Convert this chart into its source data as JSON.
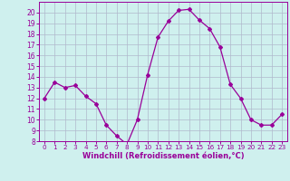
{
  "x": [
    0,
    1,
    2,
    3,
    4,
    5,
    6,
    7,
    8,
    9,
    10,
    11,
    12,
    13,
    14,
    15,
    16,
    17,
    18,
    19,
    20,
    21,
    22,
    23
  ],
  "y": [
    12,
    13.5,
    13,
    13.2,
    12.2,
    11.5,
    9.5,
    8.5,
    7.7,
    10,
    14.2,
    17.7,
    19.2,
    20.2,
    20.3,
    19.3,
    18.5,
    16.8,
    13.3,
    12,
    10,
    9.5,
    9.5,
    10.5
  ],
  "line_color": "#990099",
  "marker": "D",
  "marker_size": 2,
  "bg_color": "#cff0ee",
  "grid_color": "#b0b8cc",
  "xlabel": "Windchill (Refroidissement éolien,°C)",
  "xlabel_color": "#990099",
  "tick_color": "#990099",
  "ylim": [
    8,
    21
  ],
  "xlim": [
    -0.5,
    23.5
  ],
  "yticks": [
    8,
    9,
    10,
    11,
    12,
    13,
    14,
    15,
    16,
    17,
    18,
    19,
    20
  ],
  "xticks": [
    0,
    1,
    2,
    3,
    4,
    5,
    6,
    7,
    8,
    9,
    10,
    11,
    12,
    13,
    14,
    15,
    16,
    17,
    18,
    19,
    20,
    21,
    22,
    23
  ]
}
